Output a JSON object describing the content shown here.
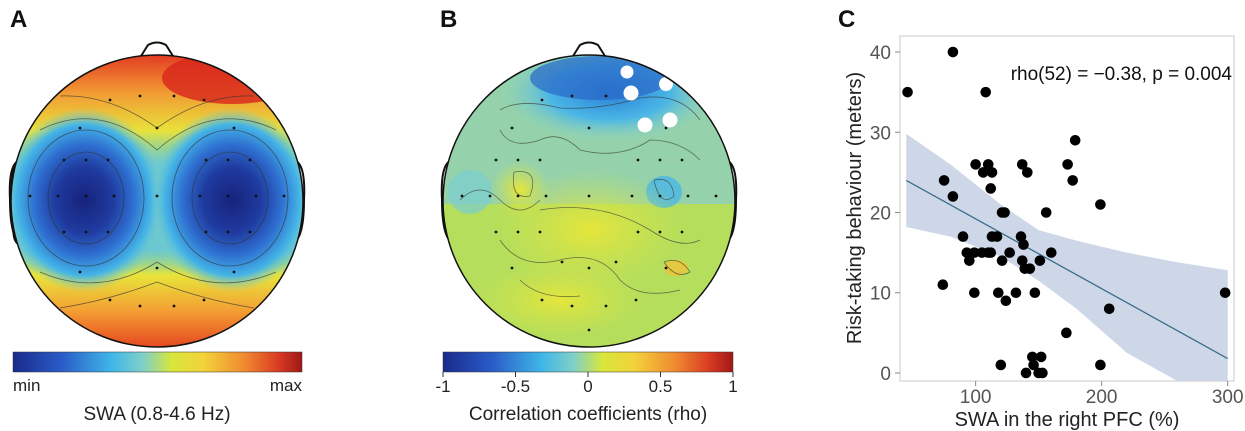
{
  "panels": {
    "a": {
      "letter": "A",
      "colorbar_min": "min",
      "colorbar_max": "max",
      "colorbar_title": "SWA (0.8-4.6 Hz)"
    },
    "b": {
      "letter": "B",
      "colorbar_ticks": [
        "-1",
        "-0.5",
        "0",
        "0.5",
        "1"
      ],
      "colorbar_title": "Correlation coefficients (rho)"
    },
    "c": {
      "letter": "C"
    }
  },
  "colors": {
    "colormap": [
      "#1a2a8c",
      "#2a5cc8",
      "#3fb6e8",
      "#7fd0c8",
      "#e6e63a",
      "#f2a23a",
      "#e0502a",
      "#a01818"
    ],
    "scatter_point": "#000000",
    "regression_line": "#3b6e8a",
    "confidence_band": "#c9d3e6"
  },
  "chart_data": [
    {
      "type": "heatmap",
      "panel": "A",
      "description_kind": "topographic scalp map",
      "colorbar": {
        "min_label": "min",
        "max_label": "max"
      },
      "title": "SWA (0.8-4.6 Hz)"
    },
    {
      "type": "heatmap",
      "panel": "B",
      "description_kind": "topographic scalp map",
      "colorbar": {
        "ticks": [
          -1,
          -0.5,
          0,
          0.5,
          1
        ],
        "range": [
          -1,
          1
        ]
      },
      "title": "Correlation coefficients (rho)"
    },
    {
      "type": "scatter",
      "panel": "C",
      "annotation": "rho(52) = −0.38, p = 0.004",
      "xlabel": "SWA in the right PFC (%)",
      "ylabel": "Risk-taking behaviour (meters)",
      "xlim": [
        40,
        305
      ],
      "ylim": [
        -1,
        42
      ],
      "xticks": [
        100,
        200,
        300
      ],
      "yticks": [
        0,
        10,
        20,
        30,
        40
      ],
      "grid": false,
      "regression": {
        "x": [
          45,
          300
        ],
        "y": [
          24,
          1.8
        ]
      },
      "confidence_band": {
        "x": [
          45,
          80,
          120,
          150,
          180,
          220,
          260,
          300
        ],
        "upper": [
          29.8,
          26,
          21,
          17.8,
          16.5,
          15,
          13.8,
          12.8
        ],
        "lower": [
          18.2,
          17,
          14.5,
          11.5,
          8,
          2.5,
          -1,
          -1
        ]
      },
      "points": {
        "x": [
          46,
          82,
          108,
          75,
          82,
          90,
          99,
          100,
          106,
          110,
          113,
          112,
          117,
          121,
          123,
          121,
          112,
          136,
          138,
          137,
          141,
          156,
          173,
          177,
          179,
          199,
          74,
          93,
          95,
          99,
          105,
          110,
          113,
          118,
          124,
          127,
          132,
          137,
          139,
          143,
          151,
          147,
          160,
          206,
          298,
          120,
          145,
          152,
          172,
          199,
          140,
          150,
          146,
          153
        ],
        "y": [
          35,
          40,
          35,
          24,
          22,
          17,
          15,
          26,
          25,
          26,
          25,
          23,
          17,
          20,
          20,
          14,
          15,
          17,
          16,
          26,
          25,
          20,
          26,
          24,
          29,
          21,
          11,
          15,
          14,
          10,
          15,
          15,
          17,
          10,
          9,
          15,
          10,
          14,
          13,
          13,
          14,
          10,
          15,
          8,
          10,
          1,
          2,
          2,
          5,
          1,
          0,
          0,
          1,
          0
        ]
      }
    }
  ]
}
